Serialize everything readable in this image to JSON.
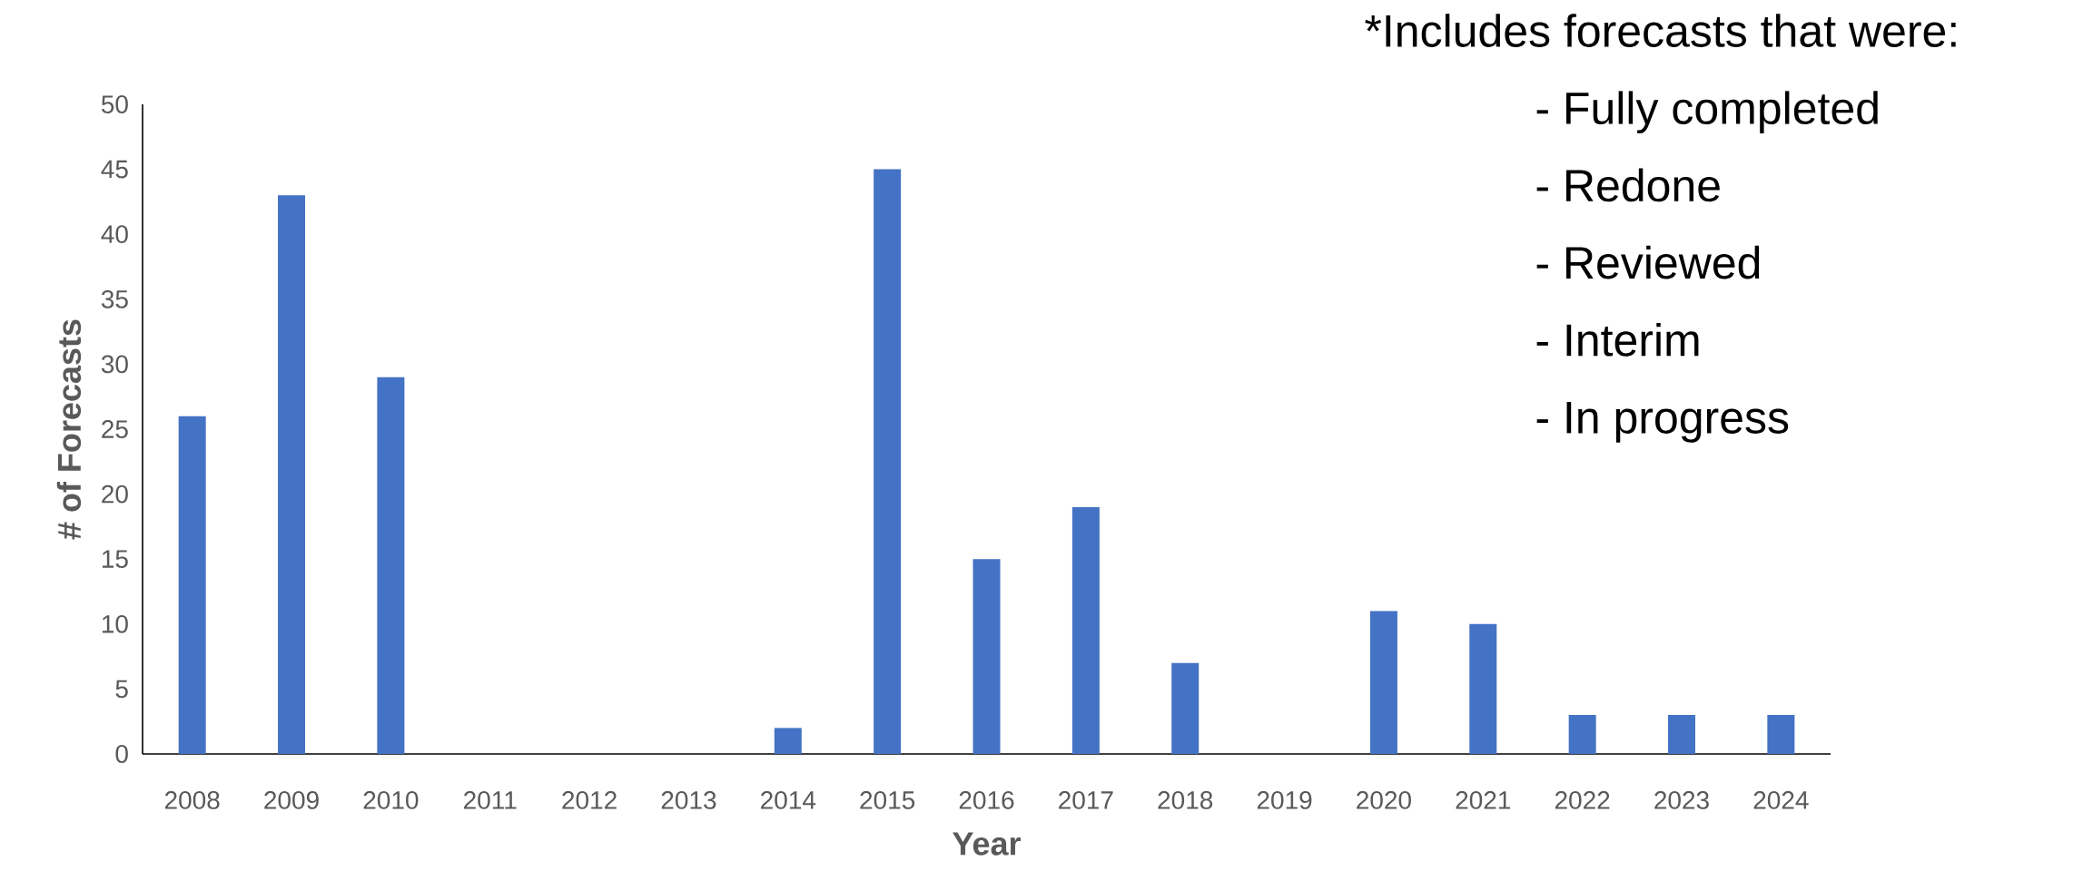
{
  "chart_data": {
    "type": "bar",
    "xlabel": "Year",
    "ylabel": "# of Forecasts",
    "categories": [
      "2008",
      "2009",
      "2010",
      "2011",
      "2012",
      "2013",
      "2014",
      "2015",
      "2016",
      "2017",
      "2018",
      "2019",
      "2020",
      "2021",
      "2022",
      "2023",
      "2024"
    ],
    "values": [
      26,
      43,
      29,
      0,
      0,
      0,
      2,
      45,
      15,
      19,
      7,
      0,
      11,
      10,
      3,
      3,
      3
    ],
    "color": "#4472c4",
    "ylim": [
      0,
      50
    ],
    "yticks": [
      0,
      5,
      10,
      15,
      20,
      25,
      30,
      35,
      40,
      45,
      50
    ],
    "annotations": [
      "*Includes forecasts that were:",
      "- Fully completed",
      "- Redone",
      "- Reviewed",
      "- Interim",
      "- In progress"
    ]
  }
}
